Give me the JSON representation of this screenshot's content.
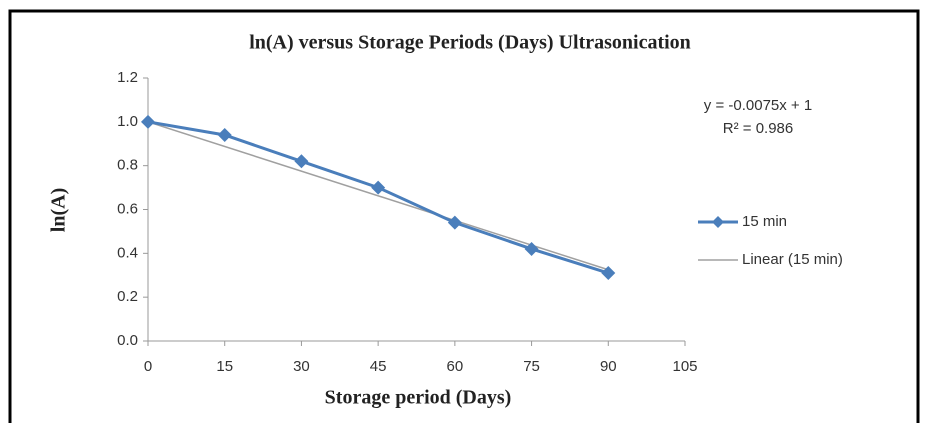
{
  "chart_data": {
    "type": "line",
    "title": "ln(A) versus Storage Periods (Days) Ultrasonication",
    "x_label": "Storage period (Days)",
    "y_label": "ln(A)",
    "x": [
      0,
      15,
      30,
      45,
      60,
      75,
      90
    ],
    "series": [
      {
        "name": "15 min",
        "color": "#4a7ebb",
        "values": [
          1.0,
          0.94,
          0.82,
          0.7,
          0.54,
          0.42,
          0.31
        ]
      }
    ],
    "trendline": {
      "name": "Linear (15 min)",
      "color": "#a0a0a0",
      "slope": -0.0075,
      "intercept": 1,
      "equation": "y = -0.0075x + 1",
      "r_squared_label": "R² = 0.986"
    },
    "xlim": [
      0,
      105
    ],
    "xticks": [
      0,
      15,
      30,
      45,
      60,
      75,
      90,
      105
    ],
    "ylim": [
      0,
      1.2
    ],
    "yticks": [
      {
        "value": 0,
        "label": "0.0"
      },
      0.2,
      0.4,
      0.6,
      0.8,
      {
        "value": 1,
        "label": "1.0"
      },
      1.2
    ],
    "grid": false,
    "legend": "right"
  }
}
